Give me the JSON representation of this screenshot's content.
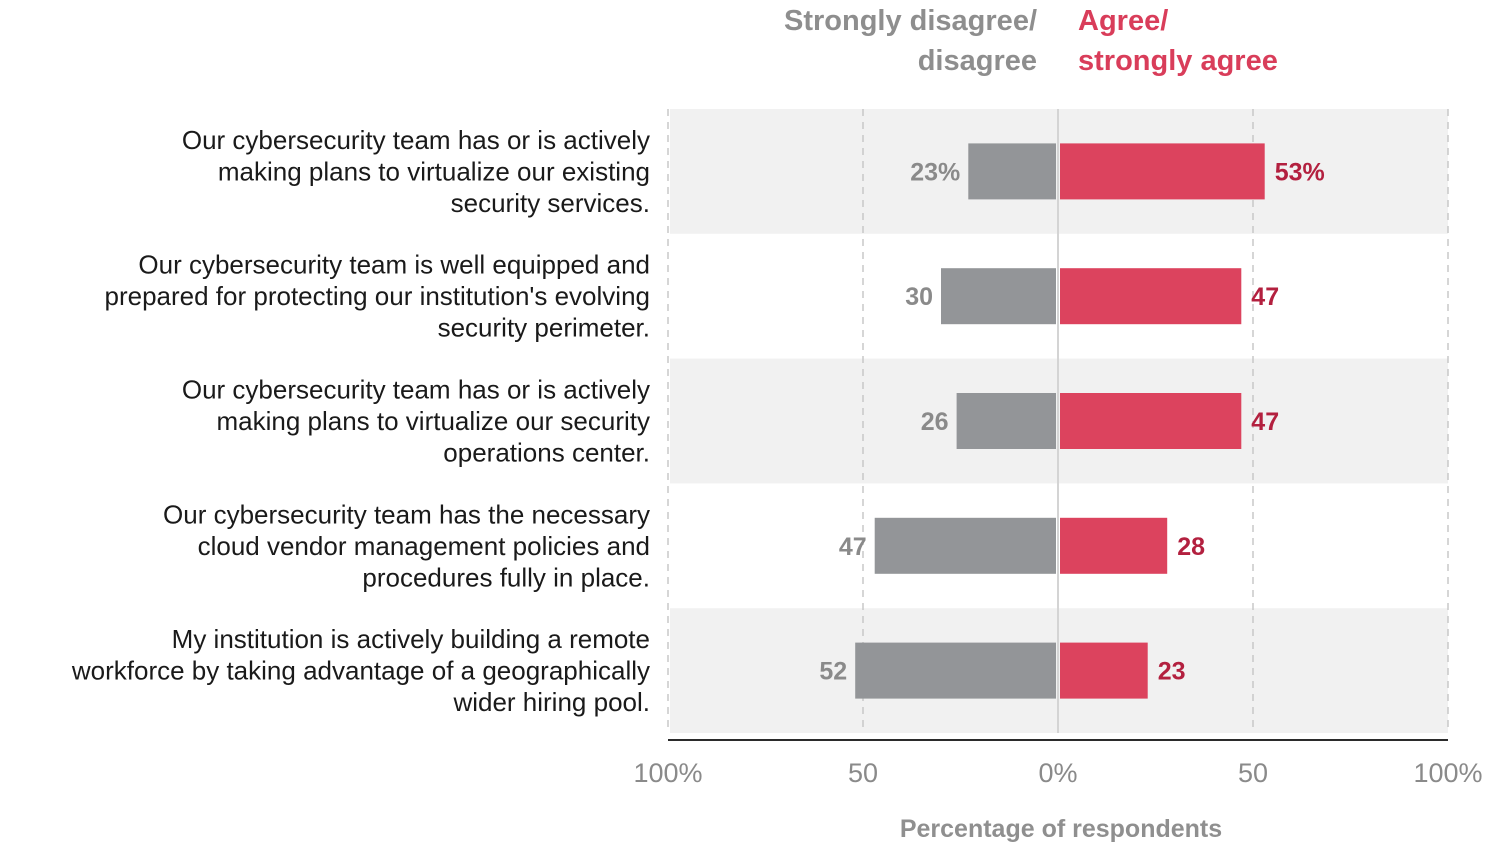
{
  "chart_data": {
    "type": "bar",
    "orientation": "horizontal",
    "layout": "diverging",
    "legend": {
      "negative": [
        "Strongly disagree/",
        "disagree"
      ],
      "positive": [
        "Agree/",
        "strongly agree"
      ]
    },
    "categories": [
      [
        "Our cybersecurity team has or is actively",
        "making plans to virtualize our existing",
        "security services."
      ],
      [
        "Our cybersecurity team is well equipped and",
        "prepared for protecting our institution's evolving",
        "security perimeter."
      ],
      [
        "Our cybersecurity team has or is actively",
        "making plans to virtualize our security",
        "operations center."
      ],
      [
        "Our cybersecurity team has the necessary",
        "cloud vendor management policies and",
        "procedures fully in place."
      ],
      [
        "My institution is actively building a remote",
        "workforce by taking advantage of a geographically",
        "wider hiring pool."
      ]
    ],
    "series": [
      {
        "name": "Strongly disagree/ disagree",
        "values": [
          23,
          30,
          26,
          47,
          52
        ],
        "labels": [
          "23%",
          "30",
          "26",
          "47",
          "52"
        ],
        "color": "#939598",
        "label_color": "#8a8a8a"
      },
      {
        "name": "Agree/ strongly agree",
        "values": [
          53,
          47,
          47,
          28,
          23
        ],
        "labels": [
          "53%",
          "47",
          "47",
          "28",
          "23"
        ],
        "color": "#dc435e",
        "label_color": "#b3203f"
      }
    ],
    "xlim": [
      -100,
      100
    ],
    "xticks": [
      -100,
      -50,
      0,
      50,
      100
    ],
    "xtick_labels": [
      "100%",
      "50",
      "0%",
      "50",
      "100%"
    ],
    "xlabel": "Percentage of respondents",
    "grid": true,
    "row_band_color": "#f1f1f1",
    "legend_colors": {
      "negative": "#8e8e8e",
      "positive": "#d93d5a"
    }
  }
}
